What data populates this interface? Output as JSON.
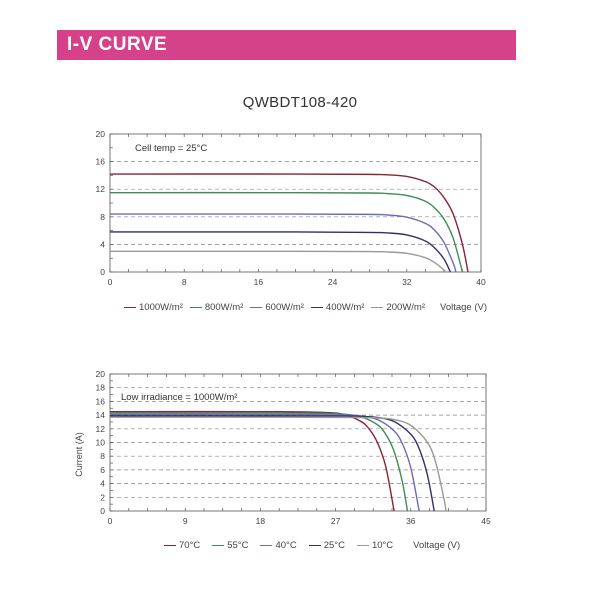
{
  "header": {
    "title": "I-V CURVE",
    "color": "#d6428a"
  },
  "model": "QWBDT108-420",
  "chart_data": [
    {
      "type": "line",
      "annotation": "Cell temp = 25°C",
      "xlabel": "Voltage (V)",
      "ylabel": "",
      "xlim": [
        0,
        40
      ],
      "ylim": [
        0,
        20
      ],
      "xticks": [
        0,
        8,
        16,
        24,
        32,
        40
      ],
      "yticks": [
        0,
        4,
        8,
        12,
        16,
        20
      ],
      "grid": "dashed horizontal",
      "legend": "bottom",
      "series": [
        {
          "name": "1000W/m²",
          "color": "#8b2332",
          "points": [
            [
              0,
              14.2
            ],
            [
              20,
              14.2
            ],
            [
              28,
              14.15
            ],
            [
              30,
              14.08
            ],
            [
              32,
              13.85
            ],
            [
              34,
              13.1
            ],
            [
              35,
              12.3
            ],
            [
              36,
              10.8
            ],
            [
              37,
              8.4
            ],
            [
              38,
              4.0
            ],
            [
              38.6,
              0
            ]
          ]
        },
        {
          "name": "800W/m²",
          "color": "#3e8c55",
          "points": [
            [
              0,
              11.5
            ],
            [
              20,
              11.5
            ],
            [
              28,
              11.45
            ],
            [
              30,
              11.36
            ],
            [
              32,
              11.09
            ],
            [
              34,
              10.26
            ],
            [
              35,
              9.3
            ],
            [
              36,
              7.7
            ],
            [
              37,
              4.9
            ],
            [
              38,
              0
            ]
          ]
        },
        {
          "name": "600W/m²",
          "color": "#6b6bb8",
          "points": [
            [
              0,
              8.4
            ],
            [
              20,
              8.4
            ],
            [
              28,
              8.35
            ],
            [
              30,
              8.26
            ],
            [
              32,
              7.95
            ],
            [
              34,
              7.05
            ],
            [
              35,
              6.05
            ],
            [
              36,
              4.3
            ],
            [
              37,
              1.3
            ],
            [
              37.3,
              0
            ]
          ]
        },
        {
          "name": "400W/m²",
          "color": "#2f2f6e",
          "points": [
            [
              0,
              5.8
            ],
            [
              20,
              5.8
            ],
            [
              28,
              5.74
            ],
            [
              30,
              5.66
            ],
            [
              32,
              5.37
            ],
            [
              34,
              4.5
            ],
            [
              35,
              3.5
            ],
            [
              36,
              1.9
            ],
            [
              36.7,
              0
            ]
          ]
        },
        {
          "name": "200W/m²",
          "color": "#999999",
          "points": [
            [
              0,
              3.0
            ],
            [
              20,
              3.0
            ],
            [
              28,
              2.96
            ],
            [
              30,
              2.9
            ],
            [
              32,
              2.7
            ],
            [
              34,
              2.07
            ],
            [
              35,
              1.37
            ],
            [
              36,
              0.3
            ],
            [
              36.1,
              0
            ]
          ]
        }
      ]
    },
    {
      "type": "line",
      "annotation": "Low irradiance = 1000W/m²",
      "xlabel": "Voltage (V)",
      "ylabel": "Current (A)",
      "xlim": [
        0,
        45
      ],
      "ylim": [
        0,
        20
      ],
      "xticks": [
        0,
        9,
        18,
        27,
        36,
        45
      ],
      "yticks": [
        0,
        2,
        4,
        6,
        8,
        10,
        12,
        14,
        16,
        18,
        20
      ],
      "grid": "dashed horizontal",
      "legend": "bottom",
      "series": [
        {
          "name": "70°C",
          "color": "#8b2332",
          "points": [
            [
              0,
              14.5
            ],
            [
              20,
              14.5
            ],
            [
              26,
              14.37
            ],
            [
              28,
              14.08
            ],
            [
              30,
              13.1
            ],
            [
              31,
              12.0
            ],
            [
              32,
              10.0
            ],
            [
              33,
              6.5
            ],
            [
              34,
              0
            ]
          ]
        },
        {
          "name": "55°C",
          "color": "#3e8c55",
          "points": [
            [
              0,
              14.3
            ],
            [
              20,
              14.3
            ],
            [
              26,
              14.25
            ],
            [
              28,
              14.14
            ],
            [
              30,
              13.77
            ],
            [
              32,
              12.6
            ],
            [
              33,
              11.2
            ],
            [
              34,
              8.7
            ],
            [
              35,
              4.2
            ],
            [
              35.6,
              0
            ]
          ]
        },
        {
          "name": "40°C",
          "color": "#6b6bb8",
          "points": [
            [
              0,
              14.1
            ],
            [
              20,
              14.1
            ],
            [
              28,
              14.03
            ],
            [
              30,
              13.87
            ],
            [
              32,
              13.35
            ],
            [
              34,
              11.7
            ],
            [
              35,
              9.8
            ],
            [
              36,
              6.3
            ],
            [
              37,
              0
            ]
          ]
        },
        {
          "name": "25°C",
          "color": "#2f2f6e",
          "points": [
            [
              0,
              13.9
            ],
            [
              20,
              13.9
            ],
            [
              28,
              13.86
            ],
            [
              30,
              13.82
            ],
            [
              32,
              13.65
            ],
            [
              34,
              13.07
            ],
            [
              36,
              11.2
            ],
            [
              37,
              9.1
            ],
            [
              38,
              5.2
            ],
            [
              38.8,
              0
            ]
          ]
        },
        {
          "name": "10°C",
          "color": "#999999",
          "points": [
            [
              0,
              13.7
            ],
            [
              20,
              13.7
            ],
            [
              30,
              13.65
            ],
            [
              32,
              13.59
            ],
            [
              34,
              13.35
            ],
            [
              36,
              12.5
            ],
            [
              38,
              10.0
            ],
            [
              39,
              7.0
            ],
            [
              40,
              1.6
            ],
            [
              40.2,
              0
            ]
          ]
        }
      ]
    }
  ]
}
